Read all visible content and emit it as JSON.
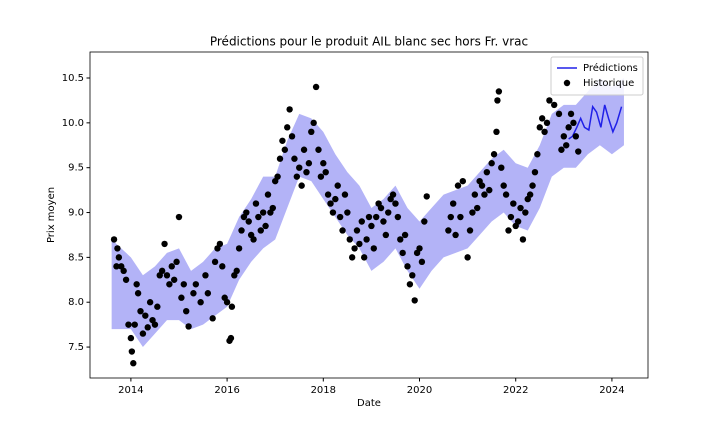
{
  "chart_data": {
    "type": "scatter",
    "title": "Prédictions pour le produit AIL blanc sec hors Fr. vrac",
    "xlabel": "Date",
    "ylabel": "Prix moyen",
    "xlim": [
      2013.15,
      2024.75
    ],
    "ylim": [
      7.155,
      10.79
    ],
    "xticks": [
      2014,
      2016,
      2018,
      2020,
      2022,
      2024
    ],
    "yticks": [
      7.5,
      {
        "value": 8,
        "label": "8.0"
      },
      8.5,
      {
        "value": 9,
        "label": "9.0"
      },
      9.5,
      {
        "value": 10,
        "label": "10.0"
      },
      10.5
    ],
    "legend": "upper right",
    "band": {
      "color": "#b3b3f7",
      "x": [
        2013.6,
        2014.0,
        2014.25,
        2014.5,
        2014.75,
        2015.0,
        2015.25,
        2015.5,
        2015.75,
        2016.0,
        2016.25,
        2016.5,
        2016.75,
        2017.0,
        2017.25,
        2017.5,
        2017.75,
        2018.0,
        2018.25,
        2018.5,
        2018.75,
        2019.0,
        2019.25,
        2019.5,
        2019.75,
        2020.0,
        2020.25,
        2020.5,
        2020.75,
        2021.0,
        2021.25,
        2021.5,
        2021.75,
        2022.0,
        2022.25,
        2022.5,
        2022.75,
        2023.0,
        2023.25,
        2023.5,
        2023.75,
        2024.0,
        2024.25
      ],
      "lower": [
        7.7,
        7.7,
        7.5,
        7.65,
        7.8,
        7.8,
        7.7,
        7.75,
        7.85,
        7.95,
        8.25,
        8.45,
        8.6,
        8.7,
        9.05,
        9.4,
        9.35,
        9.15,
        8.95,
        8.75,
        8.6,
        8.35,
        8.45,
        8.6,
        8.35,
        8.15,
        8.35,
        8.5,
        8.55,
        8.6,
        8.75,
        8.9,
        9.0,
        8.85,
        8.8,
        9.05,
        9.4,
        9.5,
        9.5,
        9.65,
        9.75,
        9.65,
        9.75
      ],
      "upper": [
        8.7,
        8.5,
        8.3,
        8.4,
        8.55,
        8.6,
        8.35,
        8.45,
        8.6,
        8.65,
        8.95,
        9.15,
        9.4,
        9.4,
        9.8,
        10.1,
        10.05,
        9.9,
        9.65,
        9.45,
        9.3,
        9.05,
        9.15,
        9.3,
        9.05,
        8.9,
        9.05,
        9.2,
        9.25,
        9.3,
        9.45,
        9.6,
        9.7,
        9.55,
        9.5,
        9.75,
        10.1,
        10.2,
        10.2,
        10.35,
        10.5,
        10.4,
        10.5
      ]
    },
    "series": [
      {
        "name": "Prédictions",
        "type": "line",
        "color": "#2020e8",
        "x": [
          2023.1,
          2023.18,
          2023.27,
          2023.35,
          2023.43,
          2023.52,
          2023.6,
          2023.68,
          2023.77,
          2023.85,
          2023.93,
          2024.02,
          2024.1,
          2024.2
        ],
        "values": [
          9.82,
          9.85,
          9.95,
          10.05,
          9.95,
          9.92,
          10.18,
          10.12,
          9.95,
          10.2,
          10.05,
          9.9,
          10.0,
          10.18
        ]
      },
      {
        "name": "Historique",
        "type": "scatter",
        "color": "#000000",
        "x": [
          2013.65,
          2013.7,
          2013.72,
          2013.75,
          2013.8,
          2013.85,
          2013.9,
          2013.95,
          2014.0,
          2014.02,
          2014.05,
          2014.08,
          2014.12,
          2014.15,
          2014.2,
          2014.25,
          2014.3,
          2014.35,
          2014.4,
          2014.45,
          2014.5,
          2014.55,
          2014.6,
          2014.65,
          2014.7,
          2014.75,
          2014.8,
          2014.85,
          2014.9,
          2014.95,
          2015.0,
          2015.05,
          2015.1,
          2015.15,
          2015.2,
          2015.3,
          2015.35,
          2015.45,
          2015.55,
          2015.6,
          2015.7,
          2015.75,
          2015.8,
          2015.85,
          2015.9,
          2015.95,
          2016.0,
          2016.05,
          2016.08,
          2016.1,
          2016.15,
          2016.2,
          2016.25,
          2016.3,
          2016.35,
          2016.4,
          2016.45,
          2016.5,
          2016.55,
          2016.6,
          2016.65,
          2016.7,
          2016.75,
          2016.8,
          2016.85,
          2016.9,
          2016.95,
          2017.0,
          2017.05,
          2017.1,
          2017.15,
          2017.2,
          2017.25,
          2017.3,
          2017.35,
          2017.4,
          2017.45,
          2017.5,
          2017.55,
          2017.6,
          2017.65,
          2017.7,
          2017.75,
          2017.8,
          2017.85,
          2017.9,
          2017.95,
          2018.0,
          2018.05,
          2018.1,
          2018.15,
          2018.2,
          2018.25,
          2018.3,
          2018.35,
          2018.4,
          2018.45,
          2018.5,
          2018.55,
          2018.6,
          2018.65,
          2018.7,
          2018.75,
          2018.8,
          2018.85,
          2018.9,
          2018.95,
          2019.0,
          2019.05,
          2019.1,
          2019.15,
          2019.2,
          2019.25,
          2019.3,
          2019.35,
          2019.4,
          2019.45,
          2019.5,
          2019.55,
          2019.6,
          2019.65,
          2019.7,
          2019.75,
          2019.8,
          2019.85,
          2019.9,
          2019.95,
          2020.0,
          2020.05,
          2020.1,
          2020.15,
          2020.6,
          2020.65,
          2020.7,
          2020.75,
          2020.8,
          2020.85,
          2020.9,
          2021.0,
          2021.05,
          2021.1,
          2021.15,
          2021.2,
          2021.25,
          2021.3,
          2021.35,
          2021.4,
          2021.45,
          2021.5,
          2021.55,
          2021.6,
          2021.62,
          2021.65,
          2021.7,
          2021.75,
          2021.8,
          2021.85,
          2021.9,
          2021.95,
          2022.0,
          2022.05,
          2022.1,
          2022.15,
          2022.2,
          2022.25,
          2022.3,
          2022.35,
          2022.4,
          2022.45,
          2022.5,
          2022.55,
          2022.6,
          2022.65,
          2022.7,
          2022.8,
          2022.9,
          2022.95,
          2023.0,
          2023.05,
          2023.1,
          2023.15,
          2023.2,
          2023.25,
          2023.3
        ],
        "values": [
          8.7,
          8.4,
          8.6,
          8.5,
          8.4,
          8.35,
          8.25,
          7.75,
          7.6,
          7.45,
          7.32,
          7.75,
          8.2,
          8.1,
          7.9,
          7.65,
          7.85,
          7.72,
          8.0,
          7.8,
          7.75,
          7.95,
          8.3,
          8.35,
          8.65,
          8.3,
          8.2,
          8.4,
          8.25,
          8.45,
          8.95,
          8.05,
          8.2,
          7.9,
          7.73,
          8.1,
          8.2,
          8.0,
          8.3,
          8.1,
          7.82,
          8.45,
          8.6,
          8.65,
          8.4,
          8.05,
          8.0,
          7.57,
          7.6,
          7.95,
          8.3,
          8.35,
          8.6,
          8.8,
          8.95,
          9.0,
          8.9,
          8.75,
          8.7,
          9.1,
          8.95,
          8.8,
          9.0,
          8.85,
          9.2,
          9.0,
          9.05,
          9.35,
          9.4,
          9.6,
          9.8,
          9.7,
          9.95,
          10.15,
          9.85,
          9.6,
          9.4,
          9.5,
          9.3,
          9.7,
          9.45,
          9.55,
          9.9,
          10.0,
          10.4,
          9.7,
          9.4,
          9.55,
          9.45,
          9.2,
          9.1,
          9.0,
          9.15,
          9.3,
          8.95,
          8.8,
          9.2,
          9.0,
          8.7,
          8.5,
          8.6,
          8.8,
          8.65,
          8.9,
          8.5,
          8.7,
          8.95,
          8.85,
          8.6,
          8.95,
          9.1,
          9.05,
          8.9,
          8.75,
          9.0,
          9.15,
          9.2,
          9.1,
          8.95,
          8.7,
          8.55,
          8.75,
          8.4,
          8.2,
          8.3,
          8.02,
          8.55,
          8.6,
          8.45,
          8.9,
          9.18,
          8.8,
          8.95,
          9.1,
          8.75,
          9.3,
          8.95,
          9.35,
          8.5,
          8.8,
          9.0,
          9.2,
          9.05,
          9.35,
          9.3,
          9.2,
          9.45,
          9.25,
          9.55,
          9.65,
          9.9,
          10.25,
          10.35,
          9.5,
          9.3,
          9.2,
          8.8,
          8.95,
          9.1,
          8.85,
          8.9,
          9.05,
          8.7,
          9.0,
          9.15,
          9.2,
          9.3,
          9.45,
          9.65,
          9.95,
          10.05,
          9.9,
          10.0,
          10.25,
          10.2,
          10.1,
          9.7,
          9.85,
          9.75,
          9.95,
          10.1,
          10.0,
          9.85,
          9.68
        ]
      }
    ]
  }
}
